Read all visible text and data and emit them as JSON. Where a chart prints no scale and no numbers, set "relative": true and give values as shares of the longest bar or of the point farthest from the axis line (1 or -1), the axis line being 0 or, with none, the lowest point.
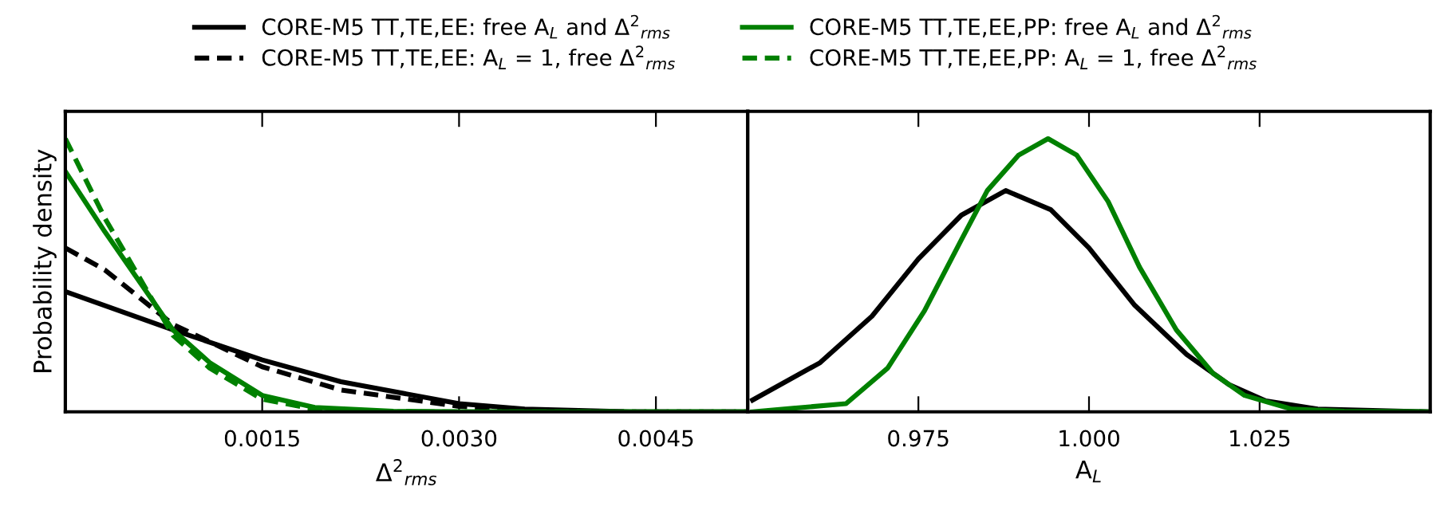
{
  "chart_data": [
    {
      "type": "line",
      "relative": true,
      "xlabel": "Δ$^{2}$$_{rms}$",
      "ylabel": "Probability density",
      "legend": "top",
      "xlim": [
        0,
        0.0052
      ],
      "xticks": [
        0.0015,
        {
          "value": 0.003,
          "label": "0.0030"
        },
        0.0045
      ],
      "series": [
        {
          "name": "CORE-M5 TT,TE,EE: free A$_{L}$ and Δ$^{2}$$_{rms}$",
          "color": "#000000",
          "x": [
            0,
            0.00082,
            0.0015,
            0.0021,
            0.003,
            0.0035,
            0.0043,
            0.0052
          ],
          "values": [
            0.44,
            0.3,
            0.19,
            0.11,
            0.03,
            0.01,
            0.0,
            0.0
          ]
        },
        {
          "name": "CORE-M5 TT,TE,EE: A$_{L}$ = 1, free Δ$^{2}$$_{rms}$",
          "color": "#000000",
          "line_style": "dashed",
          "x": [
            0,
            0.0003,
            0.00082,
            0.0015,
            0.0021,
            0.003,
            0.0035,
            0.0043,
            0.0052
          ],
          "values": [
            0.6,
            0.52,
            0.32,
            0.165,
            0.08,
            0.02,
            0.004,
            0.0,
            0.0
          ]
        },
        {
          "name": "CORE-M5 TT,TE,EE,PP: free A$_{L}$ and Δ$^{2}$$_{rms}$",
          "color": "#008000",
          "x": [
            0,
            0.0003,
            0.00082,
            0.0011,
            0.0015,
            0.0019,
            0.0025,
            0.0031,
            0.0052
          ],
          "values": [
            0.88,
            0.66,
            0.3,
            0.18,
            0.06,
            0.016,
            0.002,
            0.0,
            0.0
          ]
        },
        {
          "name": "CORE-M5 TT,TE,EE,PP: A$_{L}$ = 1, free Δ$^{2}$$_{rms}$",
          "color": "#008000",
          "line_style": "dashed",
          "x": [
            0,
            0.0003,
            0.00082,
            0.0011,
            0.0015,
            0.0019,
            0.0025,
            0.0052
          ],
          "values": [
            1.0,
            0.71,
            0.28,
            0.16,
            0.046,
            0.01,
            0.0,
            0.0
          ]
        }
      ]
    },
    {
      "type": "line",
      "relative": true,
      "xlabel": "A$_{L}$",
      "xlim": [
        0.95,
        1.05
      ],
      "xticks": [
        0.975,
        {
          "value": 1.0,
          "label": "1.000"
        },
        1.025
      ],
      "series": [
        {
          "color": "#000000",
          "x": [
            0.9507,
            0.9606,
            0.9682,
            0.975,
            0.9813,
            0.9878,
            0.9944,
            1.0,
            1.0067,
            1.0143,
            1.0205,
            1.0259,
            1.0335,
            1.05
          ],
          "values": [
            0.043,
            0.18,
            0.35,
            0.56,
            0.72,
            0.81,
            0.74,
            0.6,
            0.39,
            0.21,
            0.1,
            0.04,
            0.01,
            0.0
          ]
        },
        {
          "color": "#008000",
          "x": [
            0.9507,
            0.9644,
            0.9705,
            0.9759,
            0.9813,
            0.9851,
            0.9897,
            0.994,
            0.9982,
            1.0028,
            1.0074,
            1.0128,
            1.0182,
            1.0228,
            1.0297,
            1.0374,
            1.05
          ],
          "values": [
            0.0,
            0.03,
            0.16,
            0.37,
            0.63,
            0.81,
            0.94,
            1.0,
            0.94,
            0.77,
            0.53,
            0.3,
            0.14,
            0.06,
            0.01,
            0.002,
            0.0
          ]
        }
      ]
    }
  ]
}
